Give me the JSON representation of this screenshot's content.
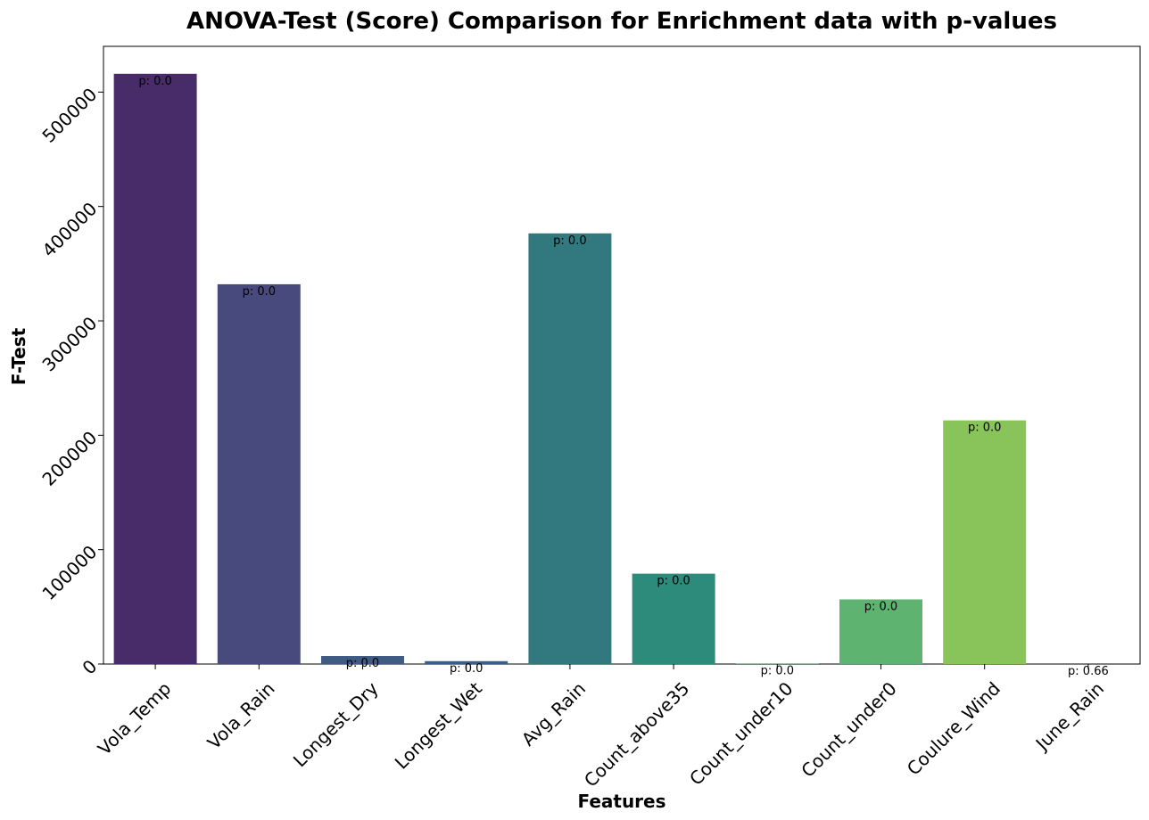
{
  "chart_data": {
    "type": "bar",
    "title": "ANOVA-Test (Score) Comparison for Enrichment data with p-values",
    "xlabel": "Features",
    "ylabel": "F-Test",
    "categories": [
      "Vola_Temp",
      "Vola_Rain",
      "Longest_Dry",
      "Longest_Wet",
      "Avg_Rain",
      "Count_above35",
      "Count_under10",
      "Count_under0",
      "Coulure_Wind",
      "June_Rain"
    ],
    "values": [
      516000,
      332000,
      7000,
      2500,
      376500,
      79000,
      300,
      56500,
      213000,
      2
    ],
    "p_labels": [
      "p: 0.0",
      "p: 0.0",
      "p: 0.0",
      "p: 0.0",
      "p: 0.0",
      "p: 0.0",
      "p: 0.0",
      "p: 0.0",
      "p: 0.0",
      "p: 0.66"
    ],
    "colors": [
      "#482c69",
      "#48497c",
      "#3f5b84",
      "#355f8c",
      "#31797f",
      "#2d8b7b",
      "#4aa874",
      "#5db36f",
      "#88c45a",
      "#ccd94a"
    ],
    "yticks": [
      0,
      100000,
      200000,
      300000,
      400000,
      500000
    ],
    "ytick_labels": [
      "0",
      "100000",
      "200000",
      "300000",
      "400000",
      "500000"
    ],
    "ylim": [
      0,
      540000
    ],
    "grid": false,
    "legend": "none"
  }
}
